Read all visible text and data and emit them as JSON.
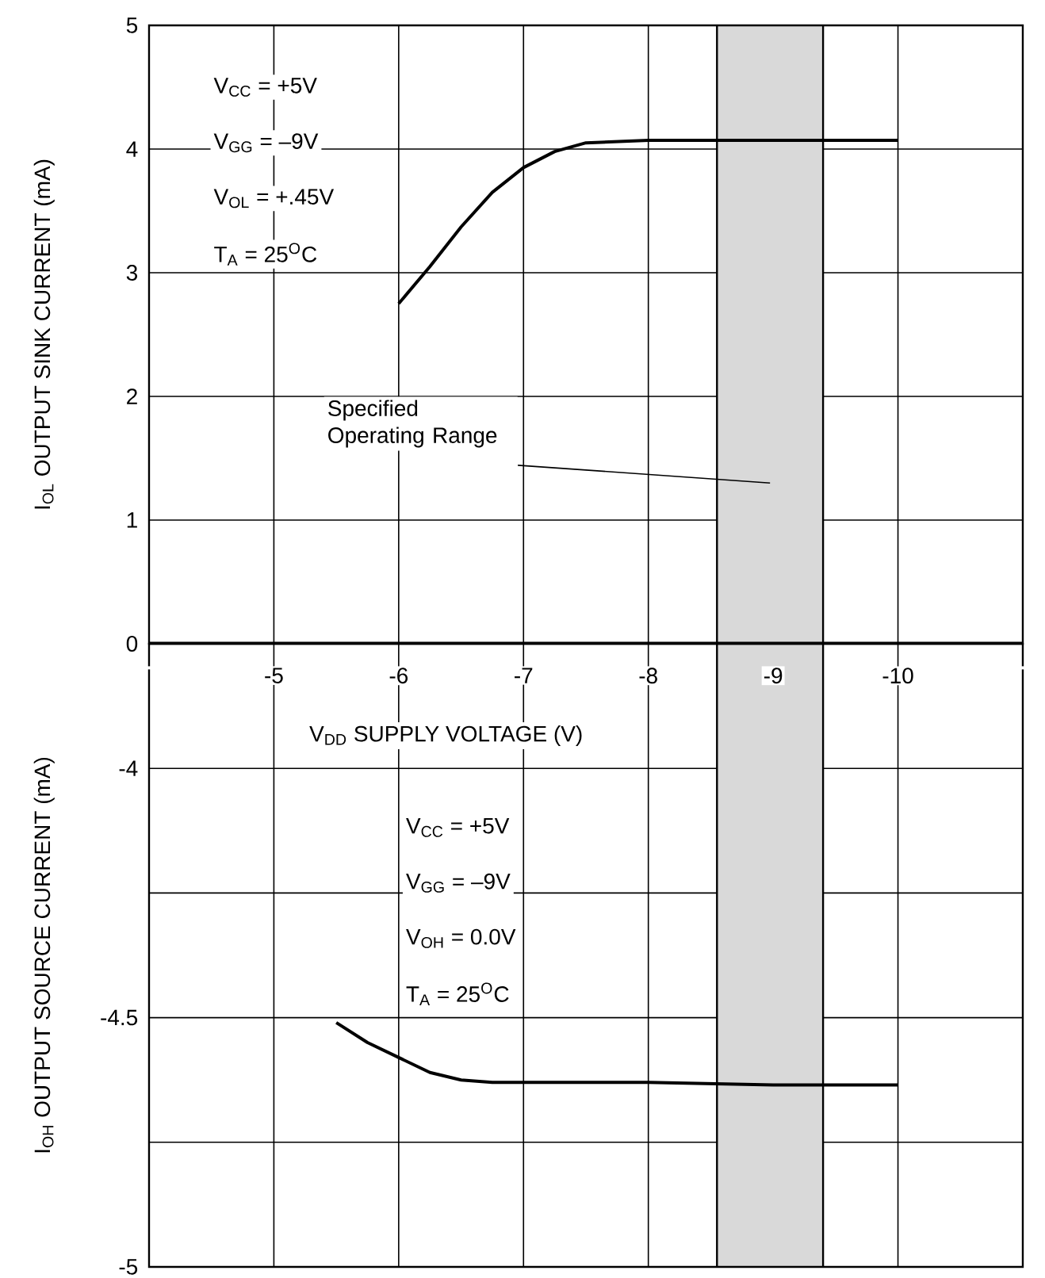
{
  "chart_data": [
    {
      "type": "line",
      "xlabel": "V$_{DD}$ SUPPLY VOLTAGE (V)",
      "ylabel": "I$_{OL}$ OUTPUT SINK CURRENT (mA)",
      "xlim": [
        -4,
        -11
      ],
      "ylim": [
        0,
        5
      ],
      "xticks": [
        {
          "value": -4,
          "label": null
        },
        -5,
        -6,
        -7,
        -8,
        -9,
        -10,
        {
          "value": -11,
          "label": null
        }
      ],
      "yticks": [
        0,
        1,
        2,
        3,
        4,
        5
      ],
      "grid": true,
      "x": [
        -6,
        -6.25,
        -6.5,
        -6.75,
        -7,
        -7.25,
        -7.5,
        -8,
        -9,
        -10
      ],
      "series": [
        {
          "color": "#000000",
          "values": [
            2.75,
            3.05,
            3.37,
            3.65,
            3.85,
            3.98,
            4.05,
            4.07,
            4.07,
            4.07
          ]
        }
      ],
      "bands": [
        {
          "axis": "x",
          "from": -8.55,
          "to": -9.4,
          "label": "Specified Operating Range",
          "color": "#d9d9d9"
        }
      ],
      "annotations": [
        "V$_{CC}$ = +5V",
        "V$_{GG}$ = –9V",
        "V$_{OL}$ = +.45V",
        "T$_{A}$ = 25$^{O}$C"
      ]
    },
    {
      "type": "line",
      "ylabel": "I$_{OH}$ OUTPUT SOURCE CURRENT (mA)",
      "tick_labels": "y",
      "xlim": [
        -4,
        -11
      ],
      "ylim": [
        -5,
        -3.75
      ],
      "xticks": [
        {
          "value": -4,
          "label": null
        },
        {
          "value": -5,
          "label": null
        },
        {
          "value": -6,
          "label": null
        },
        {
          "value": -7,
          "label": null
        },
        {
          "value": -8,
          "label": null
        },
        {
          "value": -9,
          "label": null
        },
        {
          "value": -10,
          "label": null
        },
        {
          "value": -11,
          "label": null
        }
      ],
      "yticks": [
        -5,
        {
          "value": -4.75,
          "label": null
        },
        -4.5,
        {
          "value": -4.25,
          "label": null
        },
        -4
      ],
      "grid": true,
      "x": [
        -5.5,
        -5.75,
        -6,
        -6.25,
        -6.5,
        -6.75,
        -7,
        -8,
        -9,
        -10
      ],
      "series": [
        {
          "color": "#000000",
          "values": [
            -4.51,
            -4.55,
            -4.58,
            -4.61,
            -4.625,
            -4.63,
            -4.63,
            -4.63,
            -4.635,
            -4.635
          ]
        }
      ],
      "bands": [
        {
          "axis": "x",
          "from": -8.55,
          "to": -9.4,
          "color": "#d9d9d9"
        }
      ],
      "annotations": [
        "V$_{CC}$ = +5V",
        "V$_{GG}$ = –9V",
        "V$_{OH}$ = 0.0V",
        "T$_{A}$ = 25$^{O}$C"
      ]
    }
  ]
}
